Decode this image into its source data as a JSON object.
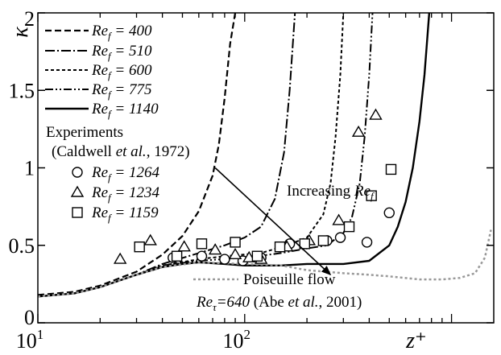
{
  "chart_data": {
    "type": "line",
    "xscale": "log",
    "xlim": [
      10,
      1600
    ],
    "ylim": [
      0,
      2
    ],
    "xlabel": "z⁺",
    "ylabel": "κ",
    "x_ticks": [
      {
        "value": 10,
        "base": "10",
        "exp": "1"
      },
      {
        "value": 100,
        "base": "10",
        "exp": "2"
      }
    ],
    "y_ticks": [
      {
        "value": 0,
        "label": "0"
      },
      {
        "value": 0.5,
        "label": "0.5"
      },
      {
        "value": 1,
        "label": "1"
      },
      {
        "value": 1.5,
        "label": "1.5"
      },
      {
        "value": 2,
        "label": "2"
      }
    ],
    "grid": false,
    "legend_position": "top-left",
    "series": [
      {
        "name": "Re_f = 400",
        "label_main": "Re",
        "label_sub": "f",
        "label_rest": " = 400",
        "style": "dashed",
        "x": [
          10,
          15,
          20,
          30,
          40,
          50,
          60,
          70,
          75,
          80,
          85,
          90
        ],
        "y": [
          0.18,
          0.2,
          0.24,
          0.33,
          0.44,
          0.56,
          0.72,
          0.95,
          1.15,
          1.45,
          1.8,
          2.0
        ]
      },
      {
        "name": "Re_f = 510",
        "label_main": "Re",
        "label_sub": "f",
        "label_rest": " = 510",
        "style": "dashdot",
        "x": [
          10,
          15,
          20,
          30,
          40,
          60,
          80,
          100,
          120,
          140,
          155,
          165,
          175
        ],
        "y": [
          0.17,
          0.19,
          0.23,
          0.31,
          0.38,
          0.45,
          0.5,
          0.55,
          0.62,
          0.8,
          1.1,
          1.5,
          2.0
        ]
      },
      {
        "name": "Re_f = 600",
        "label_main": "Re",
        "label_sub": "f",
        "label_rest": " = 600",
        "style": "dotted",
        "x": [
          10,
          15,
          20,
          30,
          40,
          60,
          80,
          120,
          160,
          200,
          240,
          260,
          275,
          290,
          300
        ],
        "y": [
          0.17,
          0.19,
          0.23,
          0.31,
          0.37,
          0.41,
          0.43,
          0.45,
          0.5,
          0.55,
          0.7,
          0.9,
          1.2,
          1.6,
          2.0
        ]
      },
      {
        "name": "Re_f = 775",
        "label_main": "Re",
        "label_sub": "f",
        "label_rest": " = 775",
        "style": "dashdotdot",
        "x": [
          10,
          15,
          20,
          30,
          40,
          60,
          100,
          150,
          200,
          250,
          300,
          330,
          360,
          380,
          400,
          415
        ],
        "y": [
          0.17,
          0.19,
          0.23,
          0.31,
          0.37,
          0.4,
          0.42,
          0.45,
          0.48,
          0.5,
          0.58,
          0.68,
          0.9,
          1.2,
          1.6,
          2.0
        ]
      },
      {
        "name": "Re_f = 1140",
        "label_main": "Re",
        "label_sub": "f",
        "label_rest": " = 1140",
        "style": "solid",
        "x": [
          10,
          15,
          20,
          30,
          40,
          50,
          60,
          80,
          100,
          150,
          200,
          300,
          400,
          500,
          550,
          600,
          650,
          700,
          740,
          780
        ],
        "y": [
          0.17,
          0.19,
          0.23,
          0.31,
          0.36,
          0.38,
          0.39,
          0.38,
          0.37,
          0.37,
          0.38,
          0.38,
          0.4,
          0.5,
          0.62,
          0.78,
          1.0,
          1.3,
          1.6,
          2.0
        ]
      },
      {
        "name": "Poiseuille flow",
        "style": "gray-dotted",
        "x": [
          10,
          15,
          20,
          30,
          40,
          60,
          100,
          150,
          200,
          300,
          400,
          500,
          700,
          900,
          1100,
          1300,
          1450,
          1550
        ],
        "y": [
          0.17,
          0.19,
          0.23,
          0.31,
          0.36,
          0.39,
          0.38,
          0.37,
          0.34,
          0.32,
          0.31,
          0.3,
          0.28,
          0.28,
          0.29,
          0.32,
          0.42,
          0.6
        ]
      }
    ],
    "experiments": {
      "title": "Experiments",
      "citation_pre": "(Caldwell ",
      "citation_em": "et al.",
      "citation_post": ", 1972)",
      "sets": [
        {
          "name": "Re_f = 1264",
          "label_main": "Re",
          "label_sub": "f",
          "label_rest": " = 1264",
          "marker": "circle",
          "x": [
            45,
            62,
            80,
            98,
            120,
            165,
            250,
            290,
            390,
            500
          ],
          "y": [
            0.42,
            0.43,
            0.41,
            0.4,
            0.42,
            0.51,
            0.53,
            0.55,
            0.52,
            0.71
          ]
        },
        {
          "name": "Re_f = 1234",
          "label_main": "Re",
          "label_sub": "f",
          "label_rest": " = 1234",
          "marker": "triangle",
          "x": [
            25,
            35,
            51,
            72,
            90,
            105,
            120,
            160,
            205,
            285,
            355,
            430
          ],
          "y": [
            0.41,
            0.53,
            0.49,
            0.47,
            0.44,
            0.42,
            0.41,
            0.49,
            0.53,
            0.66,
            1.23,
            1.34
          ]
        },
        {
          "name": "Re_f = 1159",
          "label_main": "Re",
          "label_sub": "f",
          "label_rest": " = 1159",
          "marker": "square",
          "x": [
            31,
            47,
            62,
            90,
            115,
            148,
            195,
            240,
            320,
            410,
            510
          ],
          "y": [
            0.49,
            0.43,
            0.51,
            0.52,
            0.43,
            0.49,
            0.51,
            0.53,
            0.62,
            0.82,
            0.99
          ]
        }
      ]
    },
    "annotations": {
      "increasing_pre": "Increasing ",
      "increasing_main": "Re",
      "increasing_sub": "f",
      "arrow": {
        "from": [
          72,
          1.0
        ],
        "to": [
          260,
          0.31
        ]
      },
      "poiseuille_text": "Poiseuille flow",
      "abe_main": "Re",
      "abe_sub": "τ",
      "abe_val": "=640",
      "abe_pre": " (Abe ",
      "abe_em": "et al.",
      "abe_post": ", 2001)"
    }
  }
}
